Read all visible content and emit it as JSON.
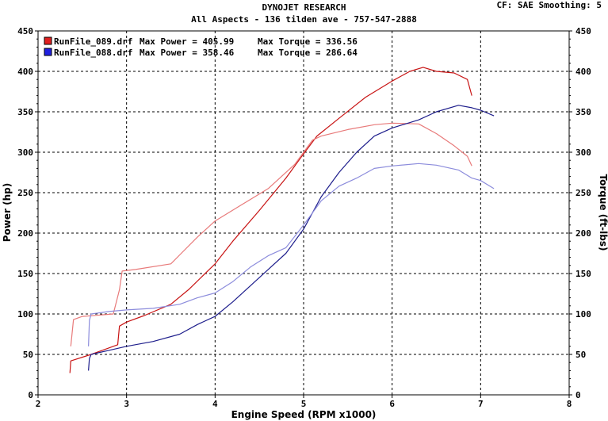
{
  "header": {
    "title": "DYNOJET RESEARCH",
    "subtitle": "All Aspects - 136 tilden ave - 757-547-2888",
    "cf_info": "CF: SAE  Smoothing: 5"
  },
  "chart_data": {
    "type": "line",
    "xlabel": "Engine Speed (RPM x1000)",
    "ylabel": "Power (hp)",
    "y2label": "Torque (ft-lbs)",
    "xlim": [
      2,
      8
    ],
    "ylim": [
      0,
      450
    ],
    "xticks": [
      "2",
      "3",
      "4",
      "5",
      "6",
      "7",
      "8"
    ],
    "yticks": [
      "0",
      "50",
      "100",
      "150",
      "200",
      "250",
      "300",
      "350",
      "400",
      "450"
    ],
    "grid": true,
    "legend": [
      {
        "file": "RunFile_089.drf",
        "power_label": "Max Power = 405.99",
        "torque_label": "Max Torque = 336.56",
        "color": "#e02020"
      },
      {
        "file": "RunFile_088.drf",
        "power_label": "Max Power = 358.46",
        "torque_label": "Max Torque = 286.64",
        "color": "#2020e0"
      }
    ],
    "series": [
      {
        "file": "RunFile_089.drf",
        "kind": "power",
        "color": "#c81414",
        "x": [
          2.36,
          2.37,
          2.6,
          2.9,
          2.92,
          3.0,
          3.2,
          3.5,
          3.7,
          4.0,
          4.2,
          4.5,
          4.8,
          5.0,
          5.15,
          5.4,
          5.7,
          6.0,
          6.2,
          6.35,
          6.5,
          6.7,
          6.85,
          6.9
        ],
        "y": [
          27,
          42,
          50,
          62,
          85,
          90,
          98,
          112,
          130,
          162,
          190,
          228,
          268,
          298,
          320,
          342,
          368,
          388,
          400,
          405,
          400,
          398,
          390,
          370
        ]
      },
      {
        "file": "RunFile_089.drf",
        "kind": "torque",
        "color": "#e87a7a",
        "x": [
          2.37,
          2.4,
          2.5,
          2.85,
          2.92,
          2.95,
          3.1,
          3.5,
          3.6,
          3.8,
          4.0,
          4.3,
          4.6,
          4.9,
          5.1,
          5.2,
          5.5,
          5.8,
          6.0,
          6.3,
          6.5,
          6.7,
          6.85,
          6.9
        ],
        "y": [
          60,
          93,
          97,
          100,
          130,
          153,
          155,
          162,
          173,
          195,
          215,
          235,
          255,
          285,
          315,
          320,
          328,
          334,
          336,
          335,
          323,
          308,
          295,
          283
        ]
      },
      {
        "file": "RunFile_088.drf",
        "kind": "power",
        "color": "#1e1e8c",
        "x": [
          2.57,
          2.58,
          2.6,
          2.8,
          3.0,
          3.3,
          3.6,
          3.8,
          4.0,
          4.2,
          4.4,
          4.6,
          4.8,
          5.0,
          5.2,
          5.4,
          5.6,
          5.8,
          6.0,
          6.3,
          6.5,
          6.75,
          6.9,
          7.0,
          7.15
        ],
        "y": [
          30,
          45,
          50,
          55,
          60,
          66,
          75,
          87,
          97,
          115,
          135,
          155,
          175,
          205,
          245,
          275,
          300,
          320,
          330,
          340,
          350,
          358,
          355,
          352,
          345
        ]
      },
      {
        "file": "RunFile_088.drf",
        "kind": "torque",
        "color": "#8c8cdc",
        "x": [
          2.57,
          2.58,
          2.6,
          2.8,
          3.0,
          3.3,
          3.6,
          3.8,
          4.0,
          4.2,
          4.4,
          4.6,
          4.8,
          5.0,
          5.2,
          5.4,
          5.6,
          5.8,
          6.0,
          6.3,
          6.5,
          6.75,
          6.9,
          7.0,
          7.15
        ],
        "y": [
          60,
          92,
          100,
          103,
          105,
          107,
          112,
          120,
          126,
          140,
          158,
          172,
          182,
          210,
          240,
          258,
          268,
          280,
          283,
          286,
          284,
          278,
          268,
          265,
          255
        ]
      }
    ]
  }
}
